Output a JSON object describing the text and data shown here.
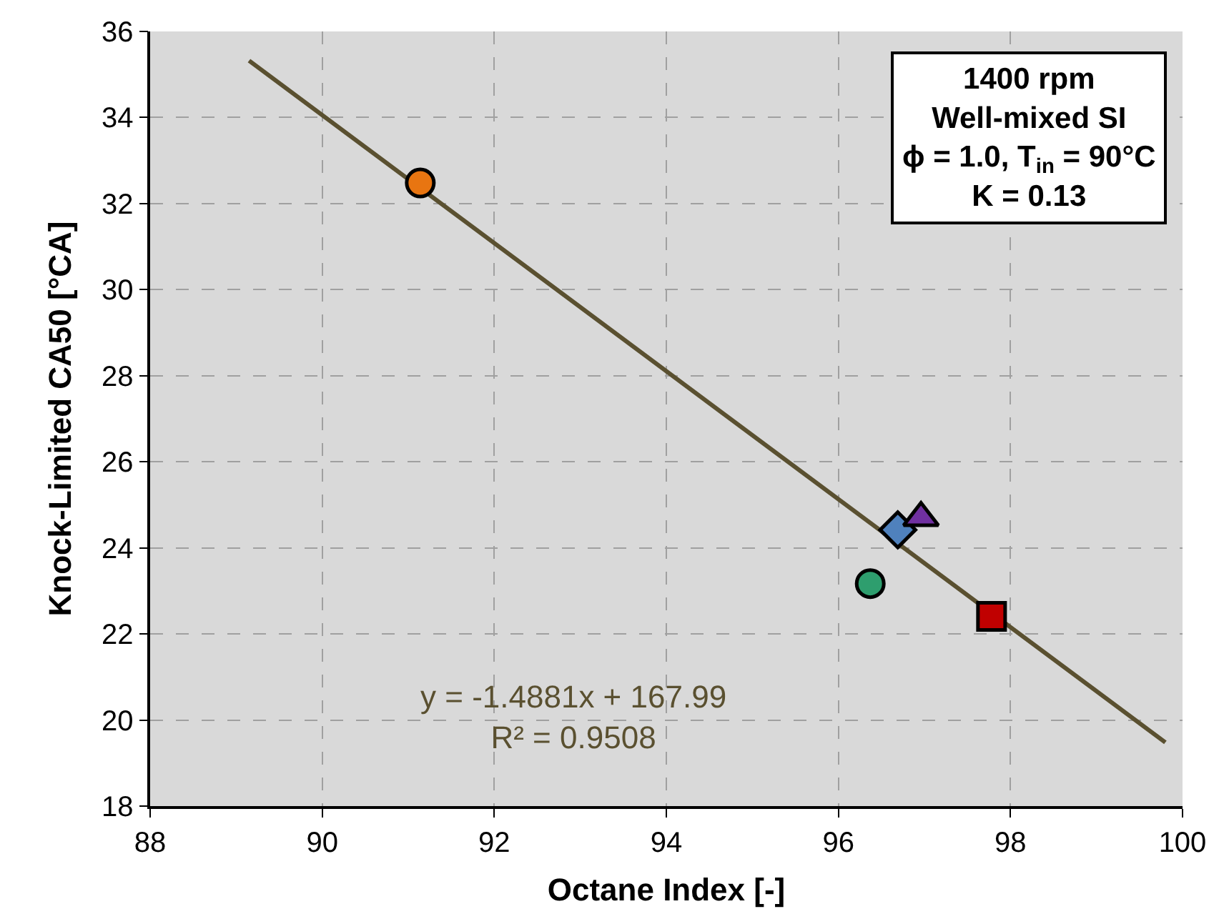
{
  "chart_data": {
    "type": "scatter",
    "xlabel": "Octane Index [-]",
    "ylabel": "Knock-Limited CA50 [°CA]",
    "xlim": [
      88,
      100
    ],
    "xticks": [
      88,
      90,
      92,
      94,
      96,
      98,
      100
    ],
    "ylim": [
      18,
      36
    ],
    "yticks": [
      18,
      20,
      22,
      24,
      26,
      28,
      30,
      32,
      34,
      36
    ],
    "grid": true,
    "series": [
      {
        "type": "line",
        "color": "#5a5030",
        "x": [
          89.15,
          99.8
        ],
        "values": [
          35.32,
          19.48
        ],
        "marker": "none",
        "line_style": "solid"
      },
      {
        "color": "#e87511",
        "x": [
          91.14
        ],
        "values": [
          32.48
        ],
        "marker": "circle"
      },
      {
        "color": "#4f81bd",
        "x": [
          96.69
        ],
        "values": [
          24.42
        ],
        "marker": "diamond"
      },
      {
        "color": "#7030a0",
        "x": [
          96.96
        ],
        "values": [
          24.7
        ],
        "marker": "triangle"
      },
      {
        "color": "#2e9e6e",
        "x": [
          96.37
        ],
        "values": [
          23.17
        ],
        "marker": "circle"
      },
      {
        "color": "#c00000",
        "x": [
          97.78
        ],
        "values": [
          22.41
        ],
        "marker": "square"
      }
    ],
    "annotations": [
      "y = -1.4881x + 167.99\nR² = 0.9508",
      "1400 rpm\nWell-mixed SI\nϕ = 1.0, T$_{in}$ = 90°C\nK = 0.13"
    ]
  }
}
